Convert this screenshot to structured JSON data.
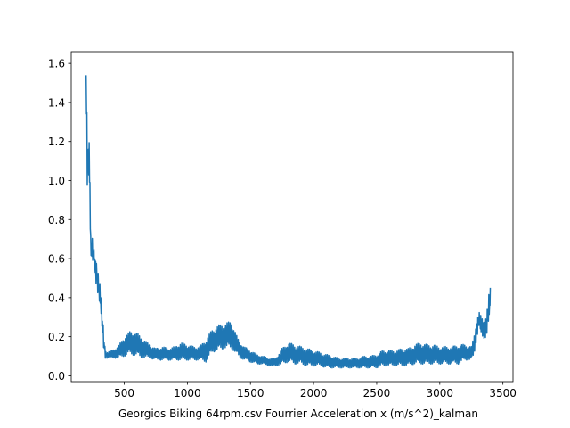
{
  "chart_data": {
    "type": "line",
    "title": "",
    "xlabel": "Georgios Biking 64rpm.csv Fourrier Acceleration x (m/s^2)_kalman",
    "ylabel": "",
    "xlim": [
      80,
      3580
    ],
    "ylim": [
      -0.03,
      1.66
    ],
    "xticks": [
      500,
      1000,
      1500,
      2000,
      2500,
      3000,
      3500
    ],
    "yticks": [
      0.0,
      0.2,
      0.4,
      0.6,
      0.8,
      1.0,
      1.2,
      1.4,
      1.6
    ],
    "grid": false,
    "line_color": "#1f77b4",
    "series": [
      {
        "profile": [
          [
            198,
            1.58,
            1.4
          ],
          [
            204,
            1.5,
            0.96
          ],
          [
            210,
            1.18,
            0.98
          ],
          [
            216,
            1.26,
            1.0
          ],
          [
            222,
            1.2,
            1.02
          ],
          [
            228,
            1.14,
            0.8
          ],
          [
            234,
            0.72,
            0.62
          ],
          [
            240,
            0.72,
            0.56
          ],
          [
            250,
            0.7,
            0.58
          ],
          [
            260,
            0.66,
            0.54
          ],
          [
            270,
            0.62,
            0.5
          ],
          [
            280,
            0.6,
            0.46
          ],
          [
            290,
            0.55,
            0.42
          ],
          [
            300,
            0.5,
            0.38
          ],
          [
            310,
            0.46,
            0.34
          ],
          [
            320,
            0.4,
            0.26
          ],
          [
            330,
            0.3,
            0.18
          ],
          [
            340,
            0.2,
            0.12
          ],
          [
            350,
            0.14,
            0.09
          ],
          [
            360,
            0.12,
            0.09
          ],
          [
            400,
            0.13,
            0.09
          ],
          [
            450,
            0.15,
            0.09
          ],
          [
            500,
            0.2,
            0.1
          ],
          [
            550,
            0.23,
            0.11
          ],
          [
            600,
            0.22,
            0.1
          ],
          [
            650,
            0.19,
            0.09
          ],
          [
            700,
            0.16,
            0.09
          ],
          [
            750,
            0.14,
            0.08
          ],
          [
            800,
            0.15,
            0.08
          ],
          [
            850,
            0.14,
            0.08
          ],
          [
            900,
            0.15,
            0.08
          ],
          [
            950,
            0.17,
            0.08
          ],
          [
            1000,
            0.16,
            0.08
          ],
          [
            1050,
            0.15,
            0.08
          ],
          [
            1100,
            0.15,
            0.08
          ],
          [
            1150,
            0.19,
            0.07
          ],
          [
            1200,
            0.24,
            0.12
          ],
          [
            1250,
            0.26,
            0.13
          ],
          [
            1300,
            0.27,
            0.14
          ],
          [
            1350,
            0.28,
            0.14
          ],
          [
            1400,
            0.19,
            0.1
          ],
          [
            1450,
            0.15,
            0.08
          ],
          [
            1500,
            0.13,
            0.07
          ],
          [
            1550,
            0.11,
            0.06
          ],
          [
            1600,
            0.1,
            0.06
          ],
          [
            1650,
            0.09,
            0.05
          ],
          [
            1700,
            0.09,
            0.05
          ],
          [
            1750,
            0.14,
            0.06
          ],
          [
            1800,
            0.17,
            0.07
          ],
          [
            1850,
            0.16,
            0.06
          ],
          [
            1900,
            0.15,
            0.06
          ],
          [
            1950,
            0.14,
            0.05
          ],
          [
            2000,
            0.13,
            0.05
          ],
          [
            2050,
            0.12,
            0.05
          ],
          [
            2100,
            0.11,
            0.04
          ],
          [
            2150,
            0.1,
            0.04
          ],
          [
            2200,
            0.09,
            0.04
          ],
          [
            2250,
            0.09,
            0.04
          ],
          [
            2300,
            0.09,
            0.04
          ],
          [
            2350,
            0.09,
            0.04
          ],
          [
            2400,
            0.1,
            0.04
          ],
          [
            2450,
            0.1,
            0.04
          ],
          [
            2500,
            0.11,
            0.04
          ],
          [
            2550,
            0.13,
            0.05
          ],
          [
            2600,
            0.13,
            0.05
          ],
          [
            2650,
            0.13,
            0.05
          ],
          [
            2700,
            0.14,
            0.05
          ],
          [
            2750,
            0.14,
            0.05
          ],
          [
            2800,
            0.16,
            0.06
          ],
          [
            2850,
            0.17,
            0.06
          ],
          [
            2900,
            0.16,
            0.06
          ],
          [
            2950,
            0.16,
            0.06
          ],
          [
            3000,
            0.15,
            0.06
          ],
          [
            3050,
            0.15,
            0.06
          ],
          [
            3100,
            0.15,
            0.06
          ],
          [
            3150,
            0.16,
            0.06
          ],
          [
            3200,
            0.16,
            0.08
          ],
          [
            3250,
            0.15,
            0.08
          ],
          [
            3270,
            0.2,
            0.1
          ],
          [
            3290,
            0.28,
            0.18
          ],
          [
            3310,
            0.33,
            0.25
          ],
          [
            3330,
            0.3,
            0.2
          ],
          [
            3350,
            0.28,
            0.19
          ],
          [
            3370,
            0.32,
            0.2
          ],
          [
            3385,
            0.4,
            0.26
          ],
          [
            3395,
            0.45,
            0.28
          ],
          [
            3400,
            0.45,
            0.38
          ]
        ]
      }
    ]
  }
}
